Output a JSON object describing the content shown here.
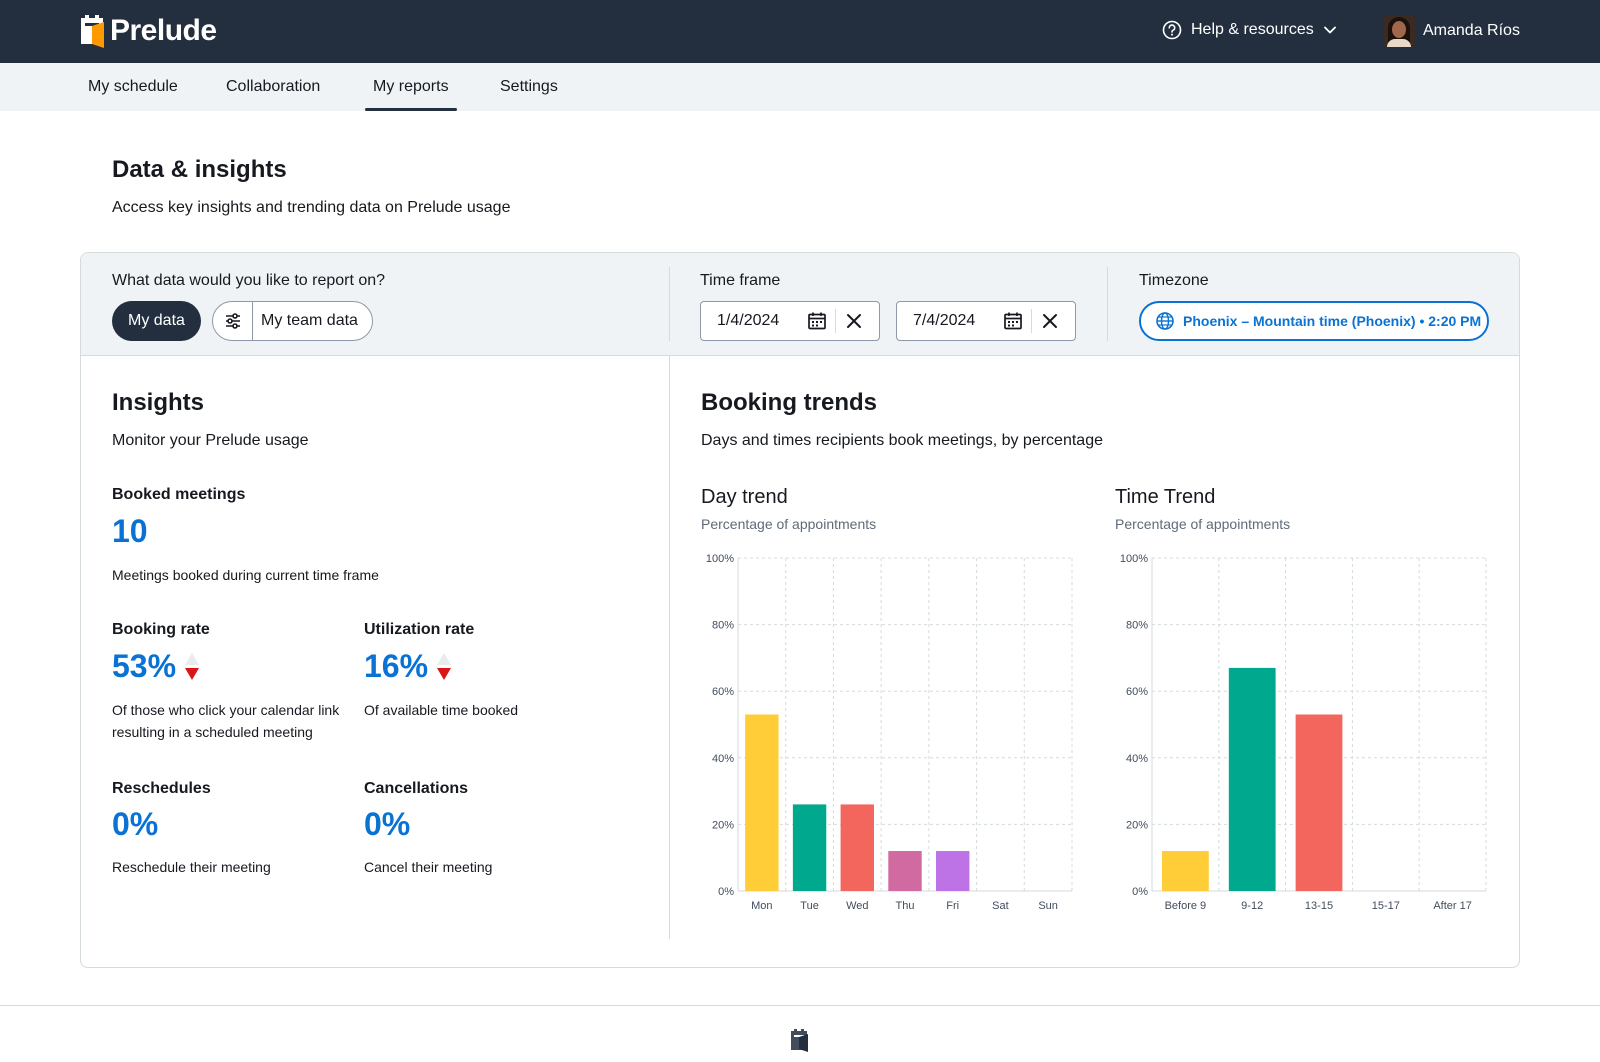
{
  "app": {
    "name": "Prelude"
  },
  "header": {
    "help_label": "Help & resources",
    "user_name": "Amanda Ríos"
  },
  "nav": {
    "tabs": [
      {
        "label": "My schedule"
      },
      {
        "label": "Collaboration"
      },
      {
        "label": "My reports",
        "active": true
      },
      {
        "label": "Settings"
      }
    ]
  },
  "page": {
    "title": "Data & insights",
    "subtitle": "Access key insights and trending data on Prelude usage"
  },
  "filters": {
    "data_question": "What data would you like to report on?",
    "my_data_label": "My data",
    "team_data_label": "My team data",
    "time_frame_label": "Time frame",
    "start_date": "1/4/2024",
    "end_date": "7/4/2024",
    "timezone_label": "Timezone",
    "timezone_value": "Phoenix – Mountain time (Phoenix) • 2:20 PM"
  },
  "insights": {
    "title": "Insights",
    "subtitle": "Monitor your Prelude usage",
    "booked": {
      "label": "Booked meetings",
      "value": "10",
      "desc": "Meetings booked during current time frame"
    },
    "booking_rate": {
      "label": "Booking rate",
      "value": "53%",
      "desc": "Of those who click your calendar link resulting in a scheduled meeting",
      "trend": "down"
    },
    "utilization_rate": {
      "label": "Utilization rate",
      "value": "16%",
      "desc": "Of available time booked",
      "trend": "down"
    },
    "reschedules": {
      "label": "Reschedules",
      "value": "0%",
      "desc": "Reschedule their meeting"
    },
    "cancellations": {
      "label": "Cancellations",
      "value": "0%",
      "desc": "Cancel their meeting"
    }
  },
  "trends": {
    "title": "Booking trends",
    "subtitle": "Days and times recipients book meetings, by percentage"
  },
  "chart_data": [
    {
      "type": "bar",
      "title": "Day trend",
      "subtitle": "Percentage of appointments",
      "categories": [
        "Mon",
        "Tue",
        "Wed",
        "Thu",
        "Fri",
        "Sat",
        "Sun"
      ],
      "values": [
        53,
        26,
        26,
        12,
        12,
        0,
        0
      ],
      "colors": [
        "#ffcd38",
        "#00a88e",
        "#f2665d",
        "#d16aa0",
        "#bd72e6",
        "#cccccc",
        "#cccccc"
      ],
      "ylim": [
        0,
        100
      ],
      "yticks": [
        "0%",
        "20%",
        "40%",
        "60%",
        "80%",
        "100%"
      ],
      "grid": true
    },
    {
      "type": "bar",
      "title": "Time Trend",
      "subtitle": "Percentage of appointments",
      "categories": [
        "Before 9",
        "9-12",
        "13-15",
        "15-17",
        "After 17"
      ],
      "values": [
        12,
        67,
        53,
        0,
        0
      ],
      "colors": [
        "#ffcd38",
        "#00a88e",
        "#f2665d",
        "#cccccc",
        "#cccccc"
      ],
      "ylim": [
        0,
        100
      ],
      "yticks": [
        "0%",
        "20%",
        "40%",
        "60%",
        "80%",
        "100%"
      ],
      "grid": true
    }
  ]
}
